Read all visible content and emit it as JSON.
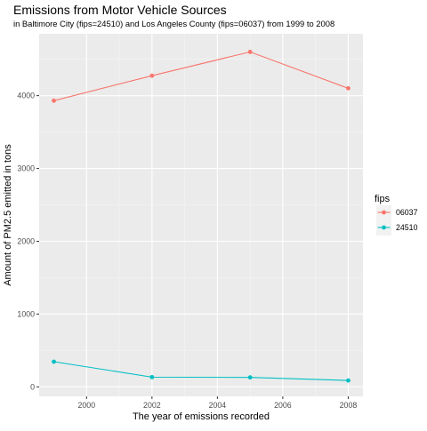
{
  "chart_data": {
    "type": "line",
    "title": "Emissions from Motor Vehicle Sources",
    "subtitle": "in Baltimore City (fips=24510) and Los Angeles County (fips=06037) from 1999 to 2008",
    "xlabel": "The year of emissions recorded",
    "ylabel": "Amount of PM2.5 emitted in tons",
    "x_ticks": [
      2000,
      2002,
      2004,
      2006,
      2008
    ],
    "y_ticks": [
      0,
      1000,
      2000,
      3000,
      4000
    ],
    "xlim": [
      1998.55,
      2008.45
    ],
    "ylim": [
      -130,
      4850
    ],
    "grid": true,
    "legend": {
      "title": "fips",
      "position": "right"
    },
    "series": [
      {
        "name": "06037",
        "color": "#F8766D",
        "x": [
          1999,
          2002,
          2005,
          2008
        ],
        "y": [
          3931,
          4274,
          4601,
          4101
        ]
      },
      {
        "name": "24510",
        "color": "#00BFC4",
        "x": [
          1999,
          2002,
          2005,
          2008
        ],
        "y": [
          346,
          134,
          130,
          88
        ]
      }
    ]
  }
}
